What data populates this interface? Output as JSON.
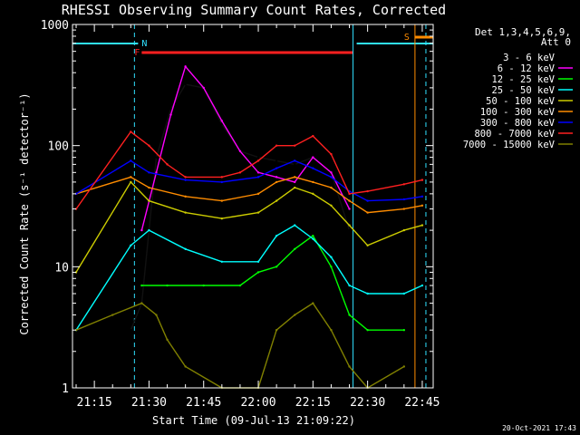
{
  "chart_data": {
    "type": "line",
    "title": "RHESSI Observing Summary Count Rates, Corrected",
    "xlabel": "Start Time (09-Jul-13 21:09:22)",
    "ylabel": "Corrected Count Rate (s⁻¹ detector⁻¹)",
    "yscale": "log",
    "ylim": [
      1,
      1000
    ],
    "xlim_minutes": [
      21.16,
      22.8
    ],
    "x_ticks": [
      "21:15",
      "21:30",
      "21:45",
      "22:00",
      "22:15",
      "22:30",
      "22:45"
    ],
    "y_ticks": [
      "1",
      "10",
      "100",
      "1000"
    ],
    "legend_header": [
      "Det 1,3,4,5,6,9,",
      "Att 0"
    ],
    "legend_position": "right",
    "footer_date": "20-Oct-2021 17:43",
    "markers": [
      {
        "label": "F",
        "color": "#ff2020"
      },
      {
        "label": "N",
        "color": "#30e0ff"
      },
      {
        "label": "S",
        "color": "#ff8c00"
      }
    ],
    "series": [
      {
        "name": "3 - 6 keV",
        "color": "#000000",
        "t": [
          "21:25",
          "21:28",
          "21:32",
          "21:36",
          "21:40",
          "21:45",
          "21:50",
          "21:55",
          "22:00",
          "22:05",
          "22:10",
          "22:15",
          "22:20",
          "22:25"
        ],
        "values": [
          3,
          5,
          80,
          200,
          320,
          300,
          150,
          90,
          80,
          75,
          70,
          80,
          60,
          20
        ]
      },
      {
        "name": "6 - 12 keV",
        "color": "#ff00ff",
        "t": [
          "21:28",
          "21:32",
          "21:36",
          "21:40",
          "21:45",
          "21:50",
          "21:55",
          "22:00",
          "22:05",
          "22:10",
          "22:15",
          "22:20",
          "22:25"
        ],
        "values": [
          20,
          60,
          180,
          450,
          300,
          160,
          90,
          60,
          55,
          50,
          80,
          60,
          30
        ]
      },
      {
        "name": "12 - 25 keV",
        "color": "#00ff00",
        "t": [
          "21:28",
          "21:35",
          "21:45",
          "21:55",
          "22:00",
          "22:05",
          "22:10",
          "22:15",
          "22:20",
          "22:25",
          "22:30",
          "22:40"
        ],
        "values": [
          7,
          7,
          7,
          7,
          9,
          10,
          14,
          18,
          10,
          4,
          3,
          3
        ]
      },
      {
        "name": "25 - 50 keV",
        "color": "#00ffff",
        "t": [
          "21:10",
          "21:25",
          "21:30",
          "21:40",
          "21:50",
          "22:00",
          "22:05",
          "22:10",
          "22:15",
          "22:20",
          "22:25",
          "22:30",
          "22:40",
          "22:45"
        ],
        "values": [
          3,
          15,
          20,
          14,
          11,
          11,
          18,
          22,
          17,
          12,
          7,
          6,
          6,
          7
        ]
      },
      {
        "name": "50 - 100 keV",
        "color": "#cccc00",
        "t": [
          "21:10",
          "21:25",
          "21:30",
          "21:40",
          "21:50",
          "22:00",
          "22:05",
          "22:10",
          "22:15",
          "22:20",
          "22:25",
          "22:30",
          "22:40",
          "22:45"
        ],
        "values": [
          9,
          50,
          35,
          28,
          25,
          28,
          35,
          45,
          40,
          32,
          22,
          15,
          20,
          22
        ]
      },
      {
        "name": "100 - 300 keV",
        "color": "#ff8c00",
        "t": [
          "21:10",
          "21:25",
          "21:30",
          "21:40",
          "21:50",
          "22:00",
          "22:05",
          "22:10",
          "22:15",
          "22:20",
          "22:25",
          "22:30",
          "22:40",
          "22:45"
        ],
        "values": [
          40,
          55,
          45,
          38,
          35,
          40,
          50,
          55,
          50,
          45,
          35,
          28,
          30,
          32
        ]
      },
      {
        "name": "300 - 800 keV",
        "color": "#0000ff",
        "t": [
          "21:10",
          "21:25",
          "21:30",
          "21:40",
          "21:50",
          "22:00",
          "22:05",
          "22:10",
          "22:15",
          "22:20",
          "22:25",
          "22:30",
          "22:40",
          "22:45"
        ],
        "values": [
          40,
          75,
          60,
          52,
          50,
          55,
          65,
          75,
          65,
          55,
          42,
          35,
          36,
          38
        ]
      },
      {
        "name": "800 - 7000 keV",
        "color": "#ff2020",
        "t": [
          "21:10",
          "21:25",
          "21:30",
          "21:35",
          "21:40",
          "21:50",
          "21:55",
          "22:00",
          "22:05",
          "22:10",
          "22:15",
          "22:20",
          "22:25",
          "22:30",
          "22:40",
          "22:45"
        ],
        "values": [
          30,
          130,
          100,
          70,
          55,
          55,
          60,
          75,
          100,
          100,
          120,
          85,
          40,
          42,
          48,
          52
        ]
      },
      {
        "name": "7000 - 15000 keV",
        "color": "#808000",
        "t": [
          "21:10",
          "21:20",
          "21:28",
          "21:32",
          "21:35",
          "21:40",
          "21:50",
          "22:00",
          "22:05",
          "22:10",
          "22:15",
          "22:20",
          "22:25",
          "22:30",
          "22:40"
        ],
        "values": [
          3,
          4,
          5,
          4,
          2.5,
          1.5,
          1,
          1,
          3,
          4,
          5,
          3,
          1.5,
          1,
          1.5
        ]
      }
    ]
  }
}
